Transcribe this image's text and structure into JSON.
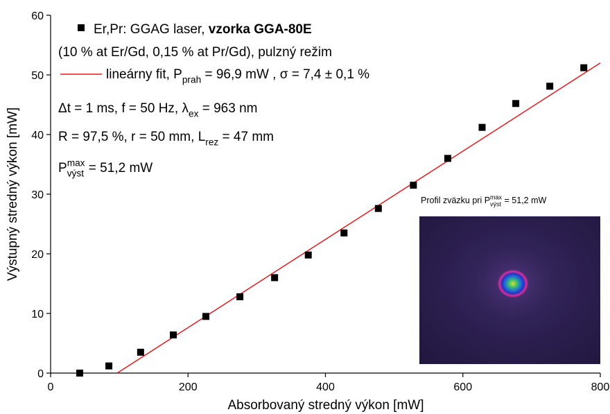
{
  "chart_data": {
    "type": "scatter",
    "x_label": "Absorbovaný stredný výkon [mW]",
    "y_label": "Výstupný stredný výkon [mW]",
    "xlim": [
      0,
      800
    ],
    "xticks": [
      0,
      200,
      400,
      600,
      800
    ],
    "ylim": [
      0,
      60
    ],
    "yticks": [
      0,
      10,
      20,
      30,
      40,
      50,
      60
    ],
    "series": [
      {
        "name": "Er,Pr: GGAG laser, ",
        "name_bold": "vzorka GGA-80E",
        "color": "#000000",
        "x": [
          42.4,
          84.8,
          131,
          178.6,
          226,
          275.5,
          326,
          375,
          427,
          477,
          528,
          578,
          628,
          677,
          726.5,
          776
        ],
        "values": [
          0,
          1.2,
          3.5,
          6.4,
          9.5,
          12.8,
          16.0,
          19.8,
          23.5,
          27.6,
          31.5,
          36.0,
          41.2,
          45.2,
          48.1,
          51.2
        ]
      },
      {
        "name": "lineárny fit, P",
        "name_sub": "prah",
        "name_rest": " = 96,9 mW , σ = 7,4 ± 0,1 %",
        "color": "#e3191c",
        "x": [
          96.9,
          800
        ],
        "values": [
          0,
          52.0
        ]
      }
    ],
    "annotations": [
      {
        "text": "(10 % at Er/Gd, 0,15 % at Pr/Gd), pulzný režim"
      },
      {
        "text": "Δt = 1 ms, f = 50 Hz, λ",
        "sub": "ex",
        "rest": " = 963 nm"
      },
      {
        "text": "R = 97,5 %, r = 50 mm, L",
        "sub": "rez",
        "rest": " = 47 mm"
      },
      {
        "text": "P",
        "sup": "max",
        "sub": "výst",
        "rest": " = 51,2 mW"
      }
    ],
    "inset_title": {
      "text": "Profil zväzku pri P",
      "sup": "max",
      "sub": "výst",
      "rest": " = 51,2 mW"
    }
  }
}
